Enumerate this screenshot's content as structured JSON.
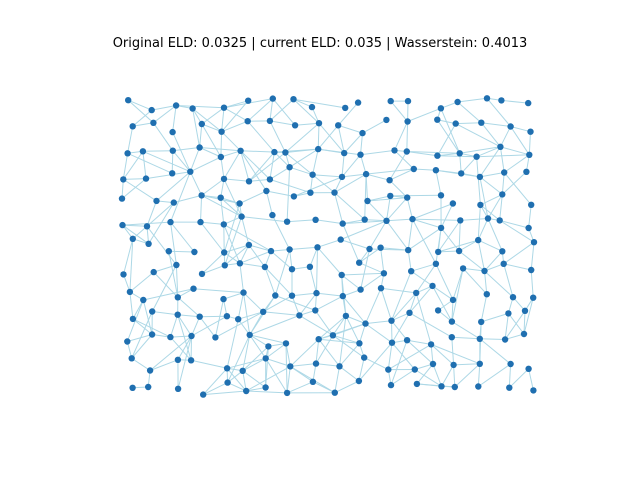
{
  "figure": {
    "title": "Original ELD: 0.0325 | current ELD: 0.035 | Wasserstein: 0.4013"
  },
  "chart_data": {
    "type": "network",
    "title": "Original ELD: 0.0325 | current ELD: 0.035 | Wasserstein: 0.4013",
    "node_color": "#1f6fb0",
    "edge_color": "#add8e6",
    "axes_visible": false,
    "grid": false,
    "legend": "none",
    "grid_cols": 18,
    "grid_rows": 13,
    "node_count": 234,
    "edge_count": 900
  }
}
